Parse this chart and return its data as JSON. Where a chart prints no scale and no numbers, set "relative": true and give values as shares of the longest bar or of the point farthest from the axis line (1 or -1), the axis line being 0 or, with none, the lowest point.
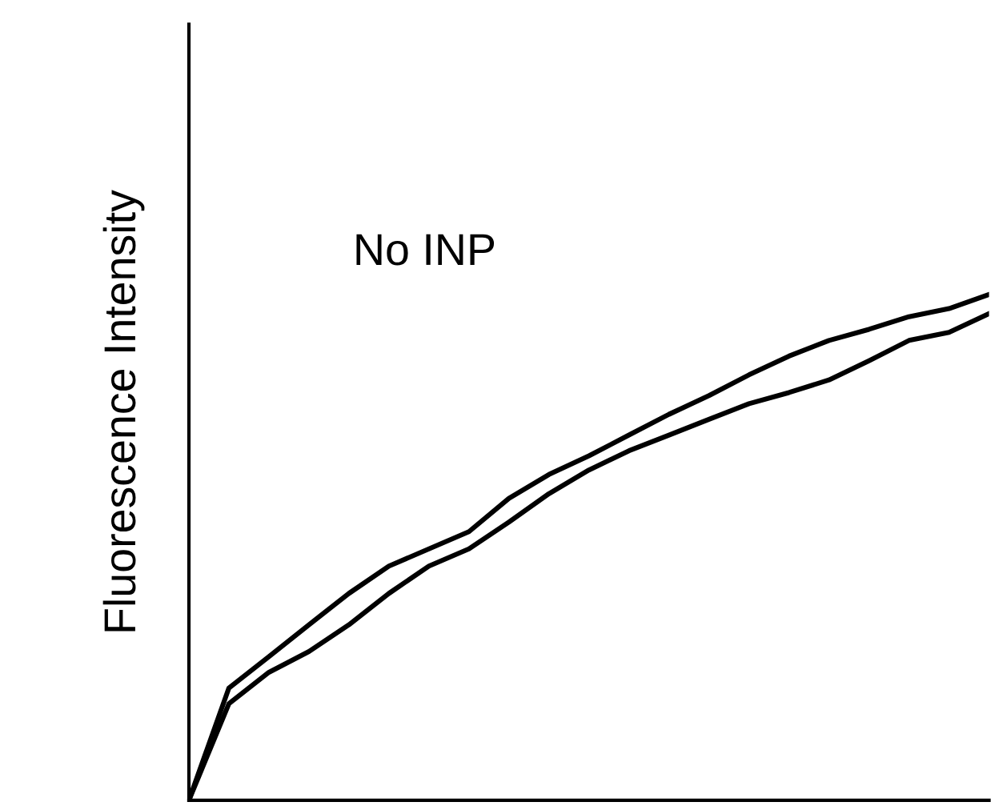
{
  "chart_data": {
    "type": "line",
    "relative": true,
    "ylabel": "Fluorescence Intensity",
    "annotations": [
      "No INP"
    ],
    "categories": [
      null,
      null,
      null,
      null,
      null,
      null,
      null,
      null,
      null,
      null,
      null,
      null,
      null,
      null,
      null,
      null,
      null,
      null,
      null,
      null,
      null
    ],
    "series": [
      {
        "color": "#000000",
        "values": [
          0,
          0.222,
          0.284,
          0.347,
          0.409,
          0.463,
          0.497,
          0.531,
          0.597,
          0.644,
          0.681,
          0.722,
          0.763,
          0.8,
          0.841,
          0.878,
          0.909,
          0.931,
          0.956,
          0.972,
          1.0
        ]
      },
      {
        "color": "#000000",
        "values": [
          0,
          0.191,
          0.253,
          0.294,
          0.347,
          0.409,
          0.463,
          0.497,
          0.55,
          0.606,
          0.653,
          0.691,
          0.722,
          0.753,
          0.784,
          0.806,
          0.831,
          0.869,
          0.909,
          0.925,
          0.962
        ]
      }
    ],
    "grid": false,
    "legend": false,
    "marker": "none",
    "line_style": "solid"
  }
}
